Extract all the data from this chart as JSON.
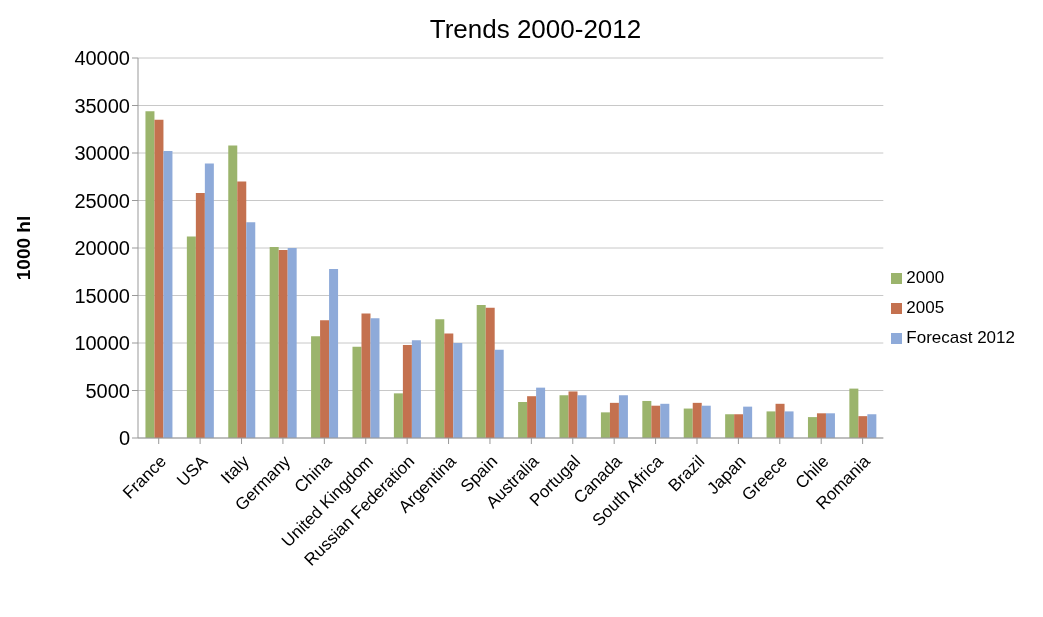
{
  "chart_data": {
    "type": "bar",
    "title": "Trends 2000-2012",
    "ylabel": "1000 hl",
    "categories": [
      "France",
      "USA",
      "Italy",
      "Germany",
      "China",
      "United Kingdom",
      "Russian Federation",
      "Argentina",
      "Spain",
      "Australia",
      "Portugal",
      "Canada",
      "South Africa",
      "Brazil",
      "Japan",
      "Greece",
      "Chile",
      "Romania"
    ],
    "series": [
      {
        "name": "2000",
        "color": "#9bb46c",
        "values": [
          34400,
          21200,
          30800,
          20100,
          10700,
          9600,
          4700,
          12500,
          14000,
          3800,
          4500,
          2700,
          3900,
          3100,
          2500,
          2800,
          2200,
          5200
        ]
      },
      {
        "name": "2005",
        "color": "#c4714f",
        "values": [
          33500,
          25800,
          27000,
          19800,
          12400,
          13100,
          9800,
          11000,
          13700,
          4400,
          4900,
          3700,
          3400,
          3700,
          2500,
          3600,
          2600,
          2300
        ]
      },
      {
        "name": "Forecast 2012",
        "color": "#8eaad9",
        "values": [
          30200,
          28900,
          22700,
          20000,
          17800,
          12600,
          10300,
          10000,
          9300,
          5300,
          4500,
          4500,
          3600,
          3400,
          3300,
          2800,
          2600,
          2500
        ]
      }
    ],
    "ylim": [
      0,
      40000
    ],
    "yticks": [
      0,
      5000,
      10000,
      15000,
      20000,
      25000,
      30000,
      35000,
      40000
    ],
    "grid": "y",
    "legend": "right"
  }
}
